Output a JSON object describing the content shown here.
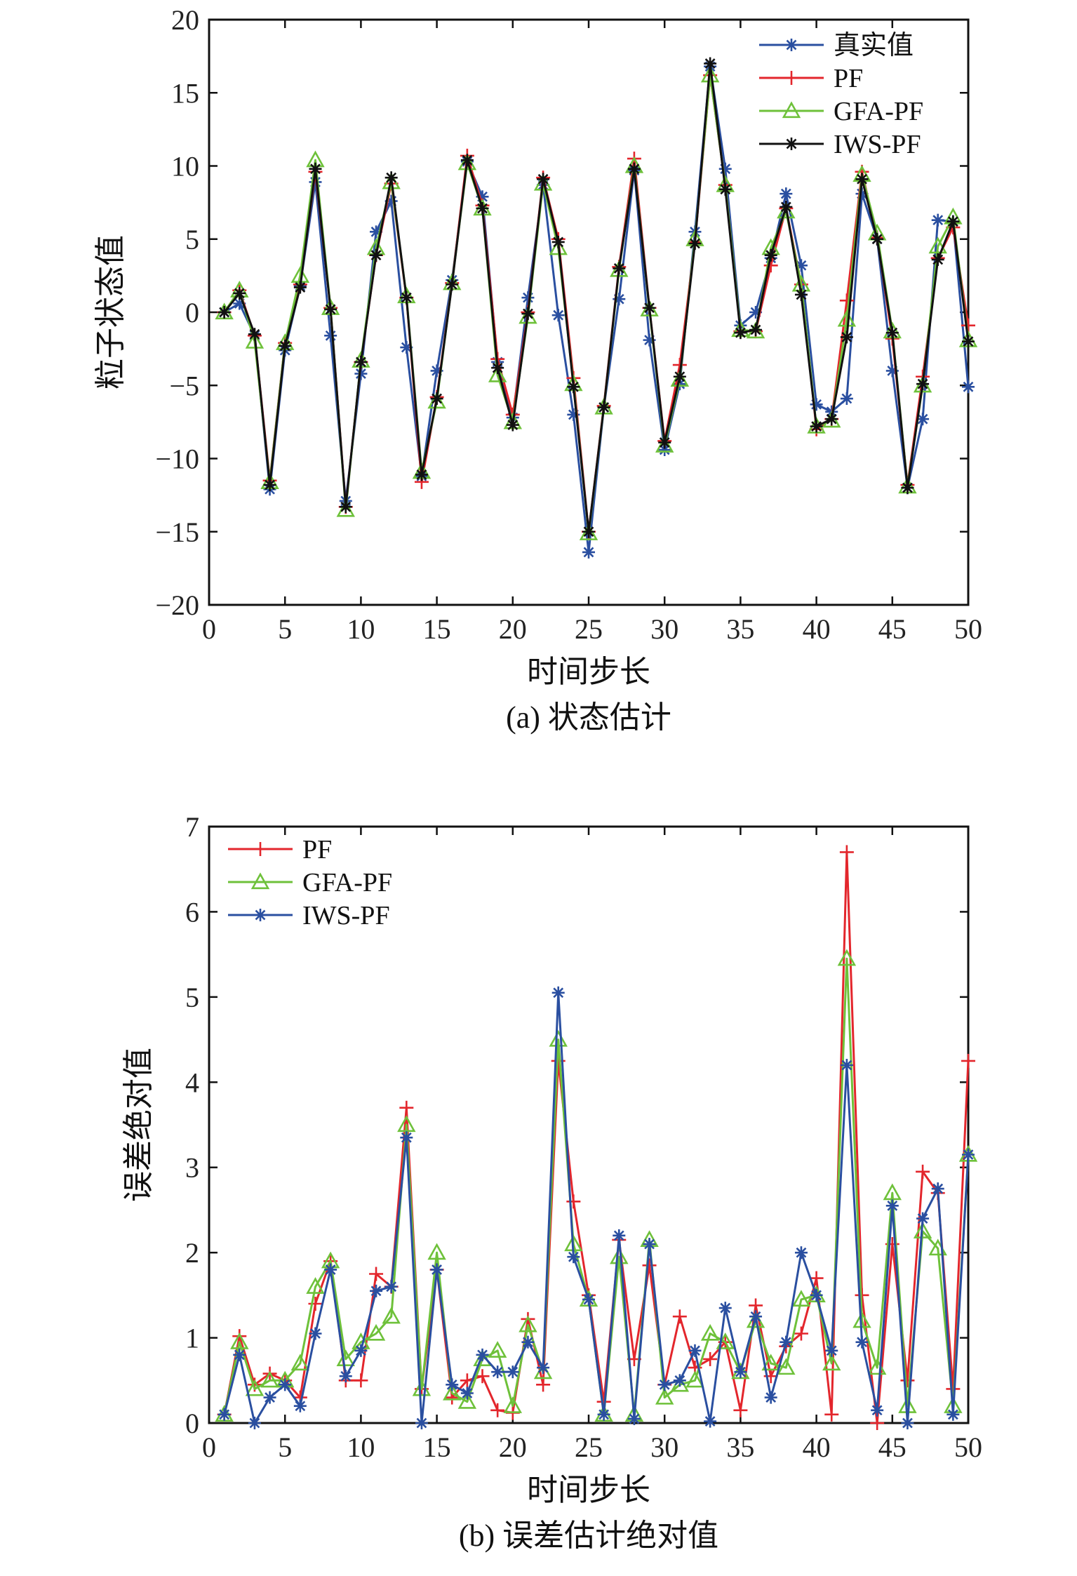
{
  "chart_data": [
    {
      "type": "line",
      "caption": "(a) 状态估计",
      "xlabel": "时间步长",
      "ylabel": "粒子状态值",
      "xlim": [
        0,
        50
      ],
      "ylim": [
        -20,
        20
      ],
      "xticks": [
        0,
        5,
        10,
        15,
        20,
        25,
        30,
        35,
        40,
        45,
        50
      ],
      "yticks": [
        -20,
        -15,
        -10,
        -5,
        0,
        5,
        10,
        15,
        20
      ],
      "legend_position": "top-right",
      "x": [
        1,
        2,
        3,
        4,
        5,
        6,
        7,
        8,
        9,
        10,
        11,
        12,
        13,
        14,
        15,
        16,
        17,
        18,
        19,
        20,
        21,
        22,
        23,
        24,
        25,
        26,
        27,
        28,
        29,
        30,
        31,
        32,
        33,
        34,
        35,
        36,
        37,
        38,
        39,
        40,
        41,
        42,
        43,
        44,
        45,
        46,
        47,
        48,
        49,
        50
      ],
      "series": [
        {
          "name": "真实值",
          "color": "#2a4fa0",
          "marker": "asterisk",
          "values": [
            0,
            0.6,
            -1.6,
            -12.1,
            -2.6,
            1.8,
            8.9,
            -1.6,
            -12.9,
            -4.2,
            5.5,
            7.6,
            -2.4,
            -11.2,
            -4.0,
            2.2,
            10.3,
            7.9,
            -3.4,
            -7.2,
            1.0,
            8.7,
            -0.2,
            -7.0,
            -16.4,
            -6.5,
            0.9,
            9.7,
            -1.9,
            -9.4,
            -4.9,
            5.5,
            16.8,
            9.8,
            -0.9,
            0,
            3.7,
            8.1,
            3.2,
            -6.3,
            -6.8,
            -5.9,
            8.1,
            5.0,
            -4.0,
            -12.0,
            -7.3,
            6.3,
            6.2,
            -5.1
          ]
        },
        {
          "name": "PF",
          "color": "#e3262c",
          "marker": "plus",
          "values": [
            0,
            1.5,
            -1.6,
            -11.5,
            -2.1,
            1.9,
            9.6,
            0.3,
            -13.3,
            -3.4,
            3.9,
            8.8,
            1.0,
            -11.6,
            -5.8,
            2.0,
            10.7,
            7.3,
            -3.2,
            -7.0,
            0,
            9.2,
            5.0,
            -4.5,
            -15.0,
            -6.4,
            3.1,
            10.5,
            0.3,
            -8.8,
            -3.6,
            4.8,
            16.2,
            8.7,
            -1.3,
            -1.3,
            3.2,
            7.1,
            1.9,
            -8.0,
            -7.3,
            0.8,
            9.6,
            5.1,
            -1.8,
            -11.8,
            -4.4,
            3.7,
            5.8,
            -0.9
          ]
        },
        {
          "name": "GFA-PF",
          "color": "#6ec13a",
          "marker": "triangle",
          "values": [
            0,
            1.5,
            -2.0,
            -11.6,
            -2.1,
            2.5,
            10.4,
            0.3,
            -13.5,
            -3.3,
            4.4,
            8.9,
            1.1,
            -10.9,
            -6.1,
            2.0,
            10.2,
            7.1,
            -4.3,
            -7.5,
            -0.3,
            8.8,
            4.4,
            -4.9,
            -15.1,
            -6.5,
            2.9,
            10.0,
            0.2,
            -9.1,
            -4.6,
            5.0,
            16.2,
            8.7,
            -1.2,
            -1.3,
            4.4,
            6.9,
            1.9,
            -7.8,
            -7.4,
            -0.5,
            9.4,
            5.4,
            -1.3,
            -11.9,
            -5.0,
            4.5,
            6.5,
            -1.9
          ]
        },
        {
          "name": "IWS-PF",
          "color": "#111111",
          "marker": "asterisk",
          "values": [
            0,
            1.3,
            -1.5,
            -11.8,
            -2.3,
            1.7,
            9.8,
            0.2,
            -13.3,
            -3.4,
            3.9,
            9.2,
            1.0,
            -11.1,
            -5.9,
            1.9,
            10.4,
            7.1,
            -3.8,
            -7.7,
            -0.1,
            9.1,
            4.8,
            -5.1,
            -15.0,
            -6.5,
            3.0,
            9.8,
            0.3,
            -8.9,
            -4.4,
            4.7,
            17.0,
            8.4,
            -1.4,
            -1.2,
            3.9,
            7.2,
            1.2,
            -7.8,
            -7.3,
            -1.7,
            9.1,
            5.0,
            -1.4,
            -12.0,
            -4.9,
            3.6,
            6.2,
            -2.0
          ]
        }
      ]
    },
    {
      "type": "line",
      "caption": "(b) 误差估计绝对值",
      "xlabel": "时间步长",
      "ylabel": "误差绝对值",
      "xlim": [
        0,
        50
      ],
      "ylim": [
        0,
        7
      ],
      "xticks": [
        0,
        5,
        10,
        15,
        20,
        25,
        30,
        35,
        40,
        45,
        50
      ],
      "yticks": [
        0,
        1,
        2,
        3,
        4,
        5,
        6,
        7
      ],
      "legend_position": "top-left",
      "x": [
        1,
        2,
        3,
        4,
        5,
        6,
        7,
        8,
        9,
        10,
        11,
        12,
        13,
        14,
        15,
        16,
        17,
        18,
        19,
        20,
        21,
        22,
        23,
        24,
        25,
        26,
        27,
        28,
        29,
        30,
        31,
        32,
        33,
        34,
        35,
        36,
        37,
        38,
        39,
        40,
        41,
        42,
        43,
        44,
        45,
        46,
        47,
        48,
        49,
        50
      ],
      "series": [
        {
          "name": "PF",
          "color": "#e3262c",
          "marker": "plus",
          "values": [
            0.1,
            1.02,
            0.45,
            0.58,
            0.5,
            0.3,
            1.4,
            1.9,
            0.5,
            0.5,
            1.75,
            1.6,
            3.7,
            0.4,
            1.8,
            0.3,
            0.5,
            0.55,
            0.15,
            0.12,
            1.22,
            0.45,
            4.25,
            2.6,
            1.5,
            0.25,
            2.15,
            0.75,
            1.85,
            0.45,
            1.25,
            0.65,
            0.75,
            0.95,
            0.15,
            1.38,
            0.55,
            0.9,
            1.05,
            1.7,
            0.1,
            6.7,
            1.5,
            0,
            2.1,
            0.5,
            2.95,
            2.7,
            0.4,
            4.25
          ]
        },
        {
          "name": "GFA-PF",
          "color": "#6ec13a",
          "marker": "triangle",
          "values": [
            0.1,
            0.95,
            0.4,
            0.5,
            0.5,
            0.7,
            1.6,
            1.9,
            0.75,
            0.95,
            1.05,
            1.25,
            3.5,
            0.4,
            2.0,
            0.35,
            0.25,
            0.75,
            0.85,
            0.2,
            1.15,
            0.6,
            4.5,
            2.1,
            1.45,
            0.1,
            1.95,
            0.1,
            2.15,
            0.3,
            0.45,
            0.5,
            1.05,
            0.95,
            0.6,
            1.2,
            0.7,
            0.65,
            1.45,
            1.5,
            0.7,
            5.45,
            1.2,
            0.65,
            2.7,
            0.2,
            2.25,
            2.05,
            0.2,
            3.15
          ]
        },
        {
          "name": "IWS-PF",
          "color": "#2a4fa0",
          "marker": "asterisk",
          "values": [
            0.1,
            0.8,
            0,
            0.3,
            0.45,
            0.2,
            1.05,
            1.8,
            0.55,
            0.85,
            1.55,
            1.6,
            3.35,
            0,
            1.8,
            0.45,
            0.35,
            0.8,
            0.6,
            0.6,
            0.95,
            0.65,
            5.05,
            1.95,
            1.45,
            0.1,
            2.2,
            0.05,
            2.1,
            0.45,
            0.5,
            0.85,
            0.02,
            1.35,
            0.6,
            1.25,
            0.3,
            0.95,
            2.0,
            1.5,
            0.85,
            4.2,
            0.95,
            0.15,
            2.55,
            0,
            2.4,
            2.75,
            0.1,
            3.15
          ]
        }
      ]
    }
  ]
}
